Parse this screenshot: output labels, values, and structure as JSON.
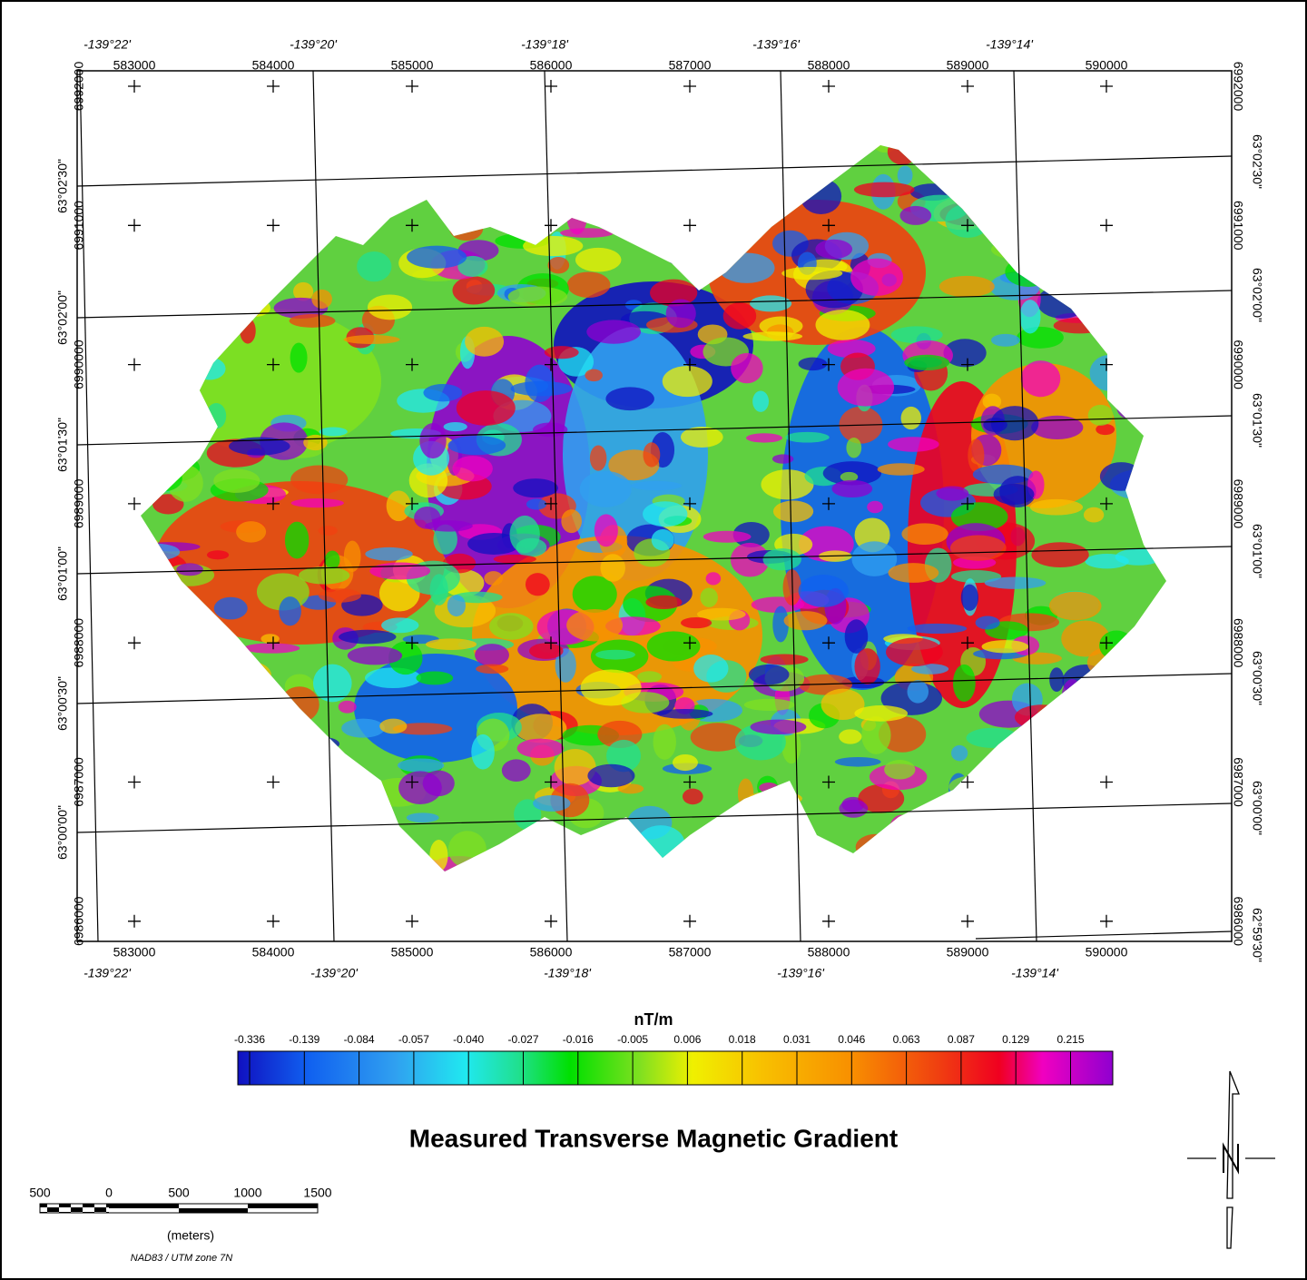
{
  "map": {
    "title": "Measured Transverse Magnetic Gradient",
    "top_geo_labels": [
      "-139°22'",
      "-139°20'",
      "-139°18'",
      "-139°16'",
      "-139°14'"
    ],
    "bottom_geo_labels": [
      "-139°22'",
      "-139°20'",
      "-139°18'",
      "-139°16'",
      "-139°14'"
    ],
    "eastings": [
      "583000",
      "584000",
      "585000",
      "586000",
      "587000",
      "588000",
      "589000",
      "590000"
    ],
    "northings": [
      "6992000",
      "6991000",
      "6990000",
      "6989000",
      "6988000",
      "6987000",
      "6986000"
    ],
    "left_lat_labels": [
      "63°02'30\"",
      "63°02'00\"",
      "63°01'30\"",
      "63°01'00\"",
      "63°00'30\"",
      "63°00'00\""
    ],
    "right_lat_labels": [
      "63°02'30\"",
      "63°02'00\"",
      "63°01'30\"",
      "63°01'00\"",
      "63°00'30\"",
      "63°00'00\"",
      "62°59'30\""
    ],
    "colorbar": {
      "unit": "nT/m",
      "labels": [
        "-0.336",
        "-0.139",
        "-0.084",
        "-0.057",
        "-0.040",
        "-0.027",
        "-0.016",
        "-0.005",
        "0.006",
        "0.018",
        "0.031",
        "0.046",
        "0.063",
        "0.087",
        "0.129",
        "0.215"
      ]
    },
    "scale_bar": {
      "labels": [
        "500",
        "0",
        "500",
        "1000",
        "1500"
      ],
      "unit": "(meters)",
      "projection": "NAD83 / UTM zone 7N"
    }
  }
}
